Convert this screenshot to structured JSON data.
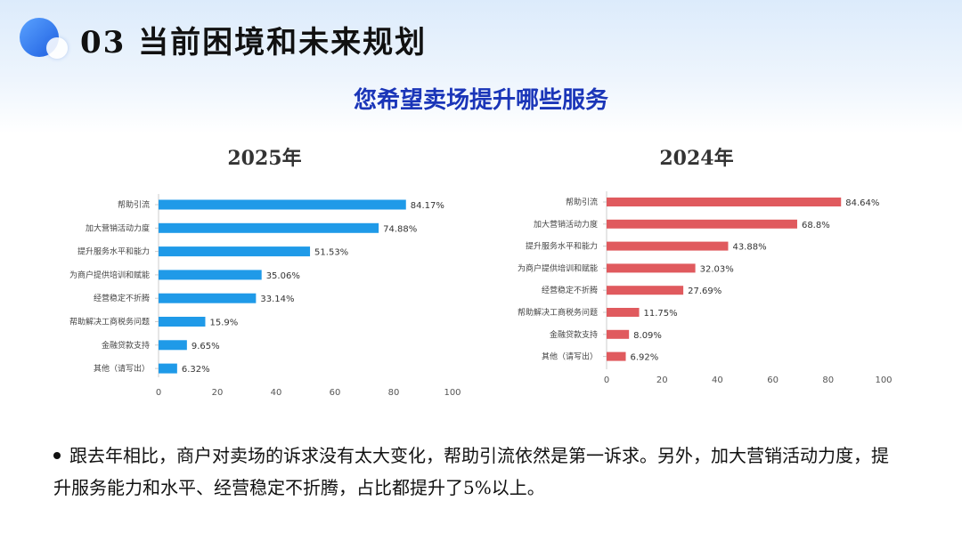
{
  "header": {
    "title": "03 当前困境和未来规划",
    "subtitle": "您希望卖场提升哪些服务"
  },
  "chart_data": [
    {
      "type": "bar",
      "orientation": "horizontal",
      "title": "2025年",
      "categories": [
        "帮助引流",
        "加大营销活动力度",
        "提升服务水平和能力",
        "为商户提供培训和赋能",
        "经营稳定不折腾",
        "帮助解决工商税务问题",
        "金融贷款支持",
        "其他（请写出）"
      ],
      "values": [
        84.17,
        74.88,
        51.53,
        35.06,
        33.14,
        15.9,
        9.65,
        6.32
      ],
      "value_labels": [
        "84.17%",
        "74.88%",
        "51.53%",
        "35.06%",
        "33.14%",
        "15.9%",
        "9.65%",
        "6.32%"
      ],
      "xlim": [
        0,
        100
      ],
      "xticks": [
        "0",
        "20",
        "40",
        "60",
        "80",
        "100"
      ],
      "color": "#1f9ae8",
      "grid": false
    },
    {
      "type": "bar",
      "orientation": "horizontal",
      "title": "2024年",
      "categories": [
        "帮助引流",
        "加大营销活动力度",
        "提升服务水平和能力",
        "为商户提供培训和赋能",
        "经营稳定不折腾",
        "帮助解决工商税务问题",
        "金融贷款支持",
        "其他（请写出）"
      ],
      "values": [
        84.64,
        68.8,
        43.88,
        32.03,
        27.69,
        11.75,
        8.09,
        6.92
      ],
      "value_labels": [
        "84.64%",
        "68.8%",
        "43.88%",
        "32.03%",
        "27.69%",
        "11.75%",
        "8.09%",
        "6.92%"
      ],
      "xlim": [
        0,
        100
      ],
      "xticks": [
        "0",
        "20",
        "40",
        "60",
        "80",
        "100"
      ],
      "color": "#e05a5e",
      "grid": false
    }
  ],
  "note": {
    "text": "跟去年相比，商户对卖场的诉求没有太大变化，帮助引流依然是第一诉求。另外，加大营销活动力度，提升服务能力和水平、经营稳定不折腾，占比都提升了5%以上。"
  }
}
